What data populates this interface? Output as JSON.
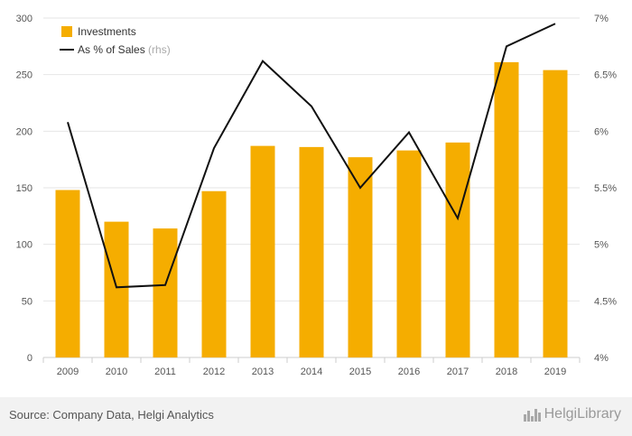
{
  "chart_data": {
    "type": "bar",
    "categories": [
      "2009",
      "2010",
      "2011",
      "2012",
      "2013",
      "2014",
      "2015",
      "2016",
      "2017",
      "2018",
      "2019"
    ],
    "series": [
      {
        "name": "Investments",
        "type": "bar",
        "axis": "left",
        "color": "#f5ad00",
        "values": [
          148,
          120,
          114,
          147,
          187,
          186,
          177,
          183,
          190,
          261,
          254
        ]
      },
      {
        "name": "As % of Sales",
        "type": "line",
        "axis": "right",
        "color": "#111111",
        "values": [
          6.08,
          4.62,
          4.64,
          5.85,
          6.62,
          6.22,
          5.5,
          5.99,
          5.23,
          6.75,
          6.95
        ]
      }
    ],
    "y_left": {
      "min": 0,
      "max": 300,
      "ticks": [
        0,
        50,
        100,
        150,
        200,
        250,
        300
      ]
    },
    "y_right": {
      "min": 4,
      "max": 7,
      "ticks": [
        4,
        4.5,
        5,
        5.5,
        6,
        6.5,
        7
      ],
      "tick_labels": [
        "4%",
        "4.5%",
        "5%",
        "5.5%",
        "6%",
        "6.5%",
        "7%"
      ]
    },
    "legend": {
      "position": "top-left",
      "rhs_suffix": "(rhs)"
    },
    "grid": true
  },
  "footer": {
    "source": "Source: Company Data, Helgi Analytics",
    "brand": "HelgiLibrary"
  }
}
